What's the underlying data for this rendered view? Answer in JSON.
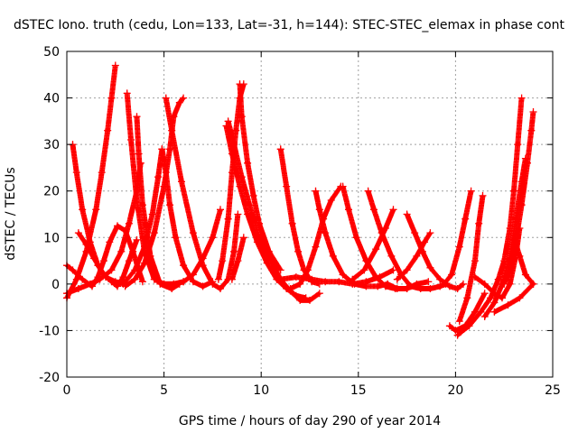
{
  "chart_data": {
    "type": "scatter",
    "title": "dSTEC Iono. truth (cedu, Lon=133, Lat=-31, h=144): STEC-STEC_elemax in phase cont",
    "xlabel": "GPS time / hours of day 290 of year 2014",
    "ylabel": "dSTEC  / TECUs",
    "xlim": [
      0,
      25
    ],
    "ylim": [
      -20,
      50
    ],
    "xticks": [
      0,
      5,
      10,
      15,
      20,
      25
    ],
    "yticks": [
      -20,
      -10,
      0,
      10,
      20,
      30,
      40,
      50
    ],
    "grid": true,
    "legend": "none",
    "marker": "plus",
    "color": "#ff0000",
    "series": [
      {
        "x": [
          0.0,
          0.3,
          0.8,
          1.3,
          1.6,
          1.9,
          2.2,
          2.6,
          3.0,
          3.4,
          3.7,
          3.9
        ],
        "y": [
          4.0,
          3.0,
          1.0,
          -0.5,
          1.5,
          5.0,
          9.0,
          12.5,
          11.5,
          7.0,
          3.0,
          0.5
        ]
      },
      {
        "x": [
          0.0,
          0.5,
          1.0,
          1.5,
          1.8,
          2.1,
          2.3,
          2.5
        ],
        "y": [
          -3.0,
          1.0,
          7.0,
          16.0,
          24.0,
          33.0,
          40.0,
          47.0
        ]
      },
      {
        "x": [
          0.3,
          0.5,
          0.8,
          1.2,
          1.6,
          2.0,
          2.5,
          3.0
        ],
        "y": [
          30.0,
          24.0,
          16.0,
          9.0,
          4.0,
          1.5,
          0.5,
          0.0
        ]
      },
      {
        "x": [
          0.6,
          1.0,
          1.4,
          1.9,
          2.3,
          2.6,
          2.9,
          3.2,
          3.6
        ],
        "y": [
          11.0,
          8.5,
          5.5,
          2.0,
          0.5,
          -0.5,
          1.5,
          5.0,
          9.5
        ]
      },
      {
        "x": [
          0.0,
          0.6,
          1.2,
          1.7,
          2.3,
          2.8,
          3.2,
          3.6,
          3.8
        ],
        "y": [
          -2.0,
          -1.0,
          0.0,
          1.0,
          3.0,
          7.0,
          13.0,
          20.0,
          26.0
        ]
      },
      {
        "x": [
          3.1,
          3.3,
          3.6,
          4.0,
          4.5,
          5.0,
          5.5,
          6.0
        ],
        "y": [
          41.0,
          31.0,
          18.0,
          7.0,
          1.0,
          0.0,
          0.0,
          0.5
        ]
      },
      {
        "x": [
          3.6,
          3.7,
          3.9,
          4.3,
          4.8,
          5.4,
          5.8
        ],
        "y": [
          36.0,
          28.0,
          17.0,
          6.0,
          0.0,
          -1.0,
          0.0
        ]
      },
      {
        "x": [
          3.0,
          3.5,
          4.0,
          4.5,
          5.0,
          5.3,
          5.5,
          5.8,
          6.0
        ],
        "y": [
          -0.5,
          1.0,
          4.5,
          11.0,
          21.0,
          29.0,
          36.0,
          39.0,
          40.0
        ]
      },
      {
        "x": [
          2.9,
          3.5,
          4.0,
          4.4,
          4.7,
          4.9
        ],
        "y": [
          0.0,
          3.0,
          8.0,
          15.0,
          23.0,
          29.0
        ]
      },
      {
        "x": [
          4.9,
          5.1,
          5.3,
          5.6,
          6.0,
          6.5,
          7.0,
          7.5
        ],
        "y": [
          29.0,
          24.0,
          17.0,
          10.0,
          4.0,
          0.5,
          -0.5,
          0.5
        ]
      },
      {
        "x": [
          5.0,
          5.5,
          6.0,
          6.5,
          7.0,
          7.5,
          7.9
        ],
        "y": [
          0.0,
          0.0,
          0.5,
          2.0,
          5.5,
          10.0,
          16.0
        ]
      },
      {
        "x": [
          5.1,
          5.4,
          5.9,
          6.5,
          7.0,
          7.5,
          7.9,
          8.3,
          8.6,
          8.8
        ],
        "y": [
          40.0,
          33.0,
          22.0,
          11.0,
          4.0,
          0.0,
          -1.0,
          1.0,
          7.0,
          15.0
        ]
      },
      {
        "x": [
          8.2,
          8.5,
          8.9,
          9.3,
          9.8,
          10.3,
          10.8,
          11.3,
          11.8,
          12.3
        ],
        "y": [
          34.0,
          28.0,
          21.0,
          15.0,
          9.0,
          4.5,
          1.0,
          -1.0,
          -2.5,
          -3.0
        ]
      },
      {
        "x": [
          8.3,
          8.6,
          9.0,
          9.4,
          9.9,
          10.5,
          11.0,
          11.5,
          12.0,
          12.5,
          13.0
        ],
        "y": [
          35.0,
          30.0,
          23.0,
          17.0,
          10.0,
          5.0,
          1.0,
          -1.5,
          -3.5,
          -3.5,
          -2.0
        ]
      },
      {
        "x": [
          7.8,
          8.0,
          8.3,
          8.5,
          8.7,
          8.9,
          9.1
        ],
        "y": [
          1.0,
          5.0,
          14.0,
          24.0,
          33.0,
          40.0,
          43.0
        ]
      },
      {
        "x": [
          8.9,
          9.0,
          9.3,
          9.6,
          9.9,
          10.4,
          11.0
        ],
        "y": [
          43.0,
          36.0,
          26.0,
          19.0,
          13.0,
          7.0,
          3.0
        ]
      },
      {
        "x": [
          8.5,
          8.8,
          9.1
        ],
        "y": [
          1.0,
          5.0,
          10.0
        ]
      },
      {
        "x": [
          11.0,
          11.3,
          11.6,
          11.9,
          12.2,
          12.6,
          13.0
        ],
        "y": [
          29.0,
          21.0,
          13.0,
          7.0,
          3.0,
          0.5,
          0.0
        ]
      },
      {
        "x": [
          11.5,
          12.0,
          12.4,
          12.8,
          13.2,
          13.6,
          14.1
        ],
        "y": [
          -1.0,
          0.0,
          3.0,
          8.0,
          14.0,
          18.0,
          21.0
        ]
      },
      {
        "x": [
          11.0,
          11.8,
          12.6,
          13.3,
          14.0,
          14.7,
          15.4,
          16.1,
          16.8
        ],
        "y": [
          1.0,
          1.5,
          1.0,
          0.5,
          0.5,
          0.0,
          0.5,
          1.5,
          3.0
        ]
      },
      {
        "x": [
          12.8,
          13.0,
          13.3,
          13.7,
          14.2,
          14.8,
          15.4,
          16.0,
          16.5
        ],
        "y": [
          20.0,
          16.0,
          11.0,
          6.0,
          2.0,
          0.0,
          -0.5,
          -0.5,
          0.0
        ]
      },
      {
        "x": [
          14.2,
          14.5,
          14.9,
          15.4,
          15.9,
          16.4,
          16.9,
          17.5
        ],
        "y": [
          21.0,
          16.0,
          10.0,
          5.0,
          1.5,
          -0.5,
          -1.0,
          -1.0
        ]
      },
      {
        "x": [
          15.5,
          15.8,
          16.2,
          16.7,
          17.2,
          17.7,
          18.2,
          18.7,
          19.2,
          19.5
        ],
        "y": [
          20.0,
          16.0,
          11.0,
          6.0,
          2.0,
          -0.5,
          -1.0,
          -1.0,
          -0.5,
          0.0
        ]
      },
      {
        "x": [
          16.5,
          17.0,
          17.5,
          18.0,
          18.6
        ],
        "y": [
          0.0,
          -1.0,
          -1.0,
          0.0,
          0.5
        ]
      },
      {
        "x": [
          14.7,
          15.3,
          15.9,
          16.4,
          16.8
        ],
        "y": [
          1.0,
          3.0,
          7.5,
          12.0,
          16.0
        ]
      },
      {
        "x": [
          17.5,
          17.9,
          18.3,
          18.7,
          19.2,
          19.7,
          20.1,
          20.4
        ],
        "y": [
          15.0,
          11.0,
          7.0,
          3.5,
          1.0,
          -0.5,
          -1.0,
          0.0
        ]
      },
      {
        "x": [
          17.0,
          17.5,
          18.0,
          18.4,
          18.7
        ],
        "y": [
          1.0,
          3.0,
          6.0,
          9.0,
          11.0
        ]
      },
      {
        "x": [
          19.4,
          19.8,
          20.2,
          20.5,
          20.8
        ],
        "y": [
          0.0,
          2.0,
          8.0,
          14.0,
          20.0
        ]
      },
      {
        "x": [
          19.7,
          20.0,
          20.5,
          21.0,
          21.5
        ],
        "y": [
          -9.0,
          -10.0,
          -9.0,
          -6.0,
          -2.0
        ]
      },
      {
        "x": [
          20.2,
          20.6,
          21.0,
          21.2,
          21.4
        ],
        "y": [
          -8.0,
          -3.0,
          5.0,
          13.0,
          19.0
        ]
      },
      {
        "x": [
          20.1,
          20.7,
          21.3,
          21.8,
          22.2,
          22.5,
          22.8,
          23.0,
          23.2,
          23.4
        ],
        "y": [
          -11.0,
          -9.0,
          -6.0,
          -3.0,
          1.0,
          5.0,
          12.0,
          20.0,
          30.0,
          40.0
        ]
      },
      {
        "x": [
          21.5,
          22.0,
          22.4,
          22.8,
          23.1,
          23.4,
          23.6
        ],
        "y": [
          -7.0,
          -4.0,
          0.0,
          6.0,
          14.0,
          22.0,
          27.0
        ]
      },
      {
        "x": [
          21.0,
          21.5,
          22.0,
          22.4,
          22.8,
          23.1,
          23.3
        ],
        "y": [
          1.5,
          0.0,
          -2.0,
          -3.0,
          0.0,
          6.0,
          12.0
        ]
      },
      {
        "x": [
          22.5,
          22.8,
          23.1,
          23.4,
          23.7,
          23.9,
          24.0
        ],
        "y": [
          0.0,
          3.0,
          9.0,
          17.0,
          26.0,
          33.0,
          37.0
        ]
      },
      {
        "x": [
          23.0,
          23.3,
          23.6,
          24.0
        ],
        "y": [
          10.0,
          6.0,
          2.0,
          0.0
        ]
      },
      {
        "x": [
          22.0,
          22.7,
          23.3,
          24.0
        ],
        "y": [
          -6.0,
          -4.5,
          -3.0,
          0.0
        ]
      }
    ]
  }
}
